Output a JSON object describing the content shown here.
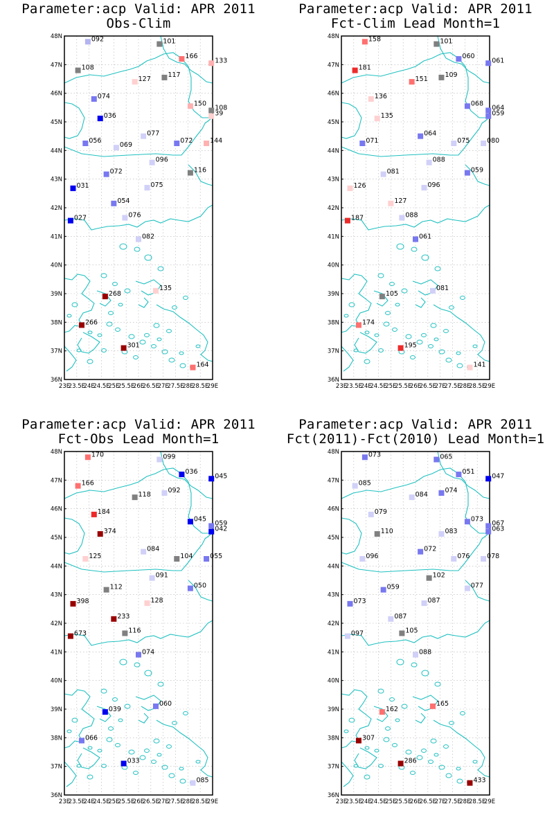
{
  "colors": {
    "coast": "#20c0c0",
    "grid": "#b0b0b0",
    "frame": "#000000",
    "scale": [
      "#0000f0",
      "#3c3cf0",
      "#7878f0",
      "#b4b4f0",
      "#d0d0f8",
      "#808080",
      "#ffd0d0",
      "#ffb0b0",
      "#ff7070",
      "#ee2a2a",
      "#990000"
    ]
  },
  "axes": {
    "lat_labels": [
      "48N",
      "47N",
      "46N",
      "45N",
      "44N",
      "43N",
      "42N",
      "41N",
      "40N",
      "39N",
      "38N",
      "37N",
      "36N"
    ],
    "lon_labels": [
      "23E",
      "23.5E",
      "24E",
      "24.5E",
      "25E",
      "25.5E",
      "26E",
      "26.5E",
      "27E",
      "27.5E",
      "28E",
      "28.5E",
      "29E"
    ],
    "lon_range": [
      23,
      29
    ],
    "lat_range": [
      36,
      48
    ]
  },
  "panels": [
    {
      "title1": "Parameter:acp Valid: APR 2011",
      "title2": "Obs-Clim",
      "stations": [
        {
          "lon": 23.95,
          "lat": 47.8,
          "label": "092",
          "color": "#b4b4f0"
        },
        {
          "lon": 26.85,
          "lat": 47.72,
          "label": "101",
          "color": "#808080"
        },
        {
          "lon": 27.75,
          "lat": 47.2,
          "label": "166",
          "color": "#ff7070"
        },
        {
          "lon": 28.95,
          "lat": 47.05,
          "label": "133",
          "color": "#ffb0b0"
        },
        {
          "lon": 23.55,
          "lat": 46.8,
          "label": "108",
          "color": "#808080"
        },
        {
          "lon": 25.85,
          "lat": 46.4,
          "label": "127",
          "color": "#ffd0d0"
        },
        {
          "lon": 27.05,
          "lat": 46.55,
          "label": "117",
          "color": "#808080"
        },
        {
          "lon": 24.2,
          "lat": 45.8,
          "label": "074",
          "color": "#7878f0"
        },
        {
          "lon": 28.1,
          "lat": 45.55,
          "label": "150",
          "color": "#ffb0b0"
        },
        {
          "lon": 28.95,
          "lat": 45.4,
          "label": "108",
          "color": "#808080"
        },
        {
          "lon": 28.95,
          "lat": 45.2,
          "label": "39",
          "color": "#ffd0d0"
        },
        {
          "lon": 24.45,
          "lat": 45.12,
          "label": "036",
          "color": "#0000f0"
        },
        {
          "lon": 26.2,
          "lat": 44.5,
          "label": "077",
          "color": "#d0d0f8"
        },
        {
          "lon": 23.85,
          "lat": 44.25,
          "label": "056",
          "color": "#7878f0"
        },
        {
          "lon": 25.1,
          "lat": 44.1,
          "label": "069",
          "color": "#d0d0f8"
        },
        {
          "lon": 27.55,
          "lat": 44.25,
          "label": "072",
          "color": "#7878f0"
        },
        {
          "lon": 28.75,
          "lat": 44.25,
          "label": "144",
          "color": "#ffb0b0"
        },
        {
          "lon": 26.55,
          "lat": 43.58,
          "label": "096",
          "color": "#d0d0f8"
        },
        {
          "lon": 24.7,
          "lat": 43.17,
          "label": "072",
          "color": "#7878f0"
        },
        {
          "lon": 28.1,
          "lat": 43.22,
          "label": "116",
          "color": "#808080"
        },
        {
          "lon": 23.35,
          "lat": 42.68,
          "label": "031",
          "color": "#0000f0"
        },
        {
          "lon": 26.35,
          "lat": 42.7,
          "label": "075",
          "color": "#d0d0f8"
        },
        {
          "lon": 25.0,
          "lat": 42.15,
          "label": "054",
          "color": "#7878f0"
        },
        {
          "lon": 25.45,
          "lat": 41.65,
          "label": "076",
          "color": "#d0d0f8"
        },
        {
          "lon": 23.25,
          "lat": 41.55,
          "label": "027",
          "color": "#0000f0"
        },
        {
          "lon": 26.0,
          "lat": 40.9,
          "label": "082",
          "color": "#d0d0f8"
        },
        {
          "lon": 24.65,
          "lat": 38.9,
          "label": "268",
          "color": "#990000"
        },
        {
          "lon": 26.7,
          "lat": 39.1,
          "label": "135",
          "color": "#ffd0d0"
        },
        {
          "lon": 23.7,
          "lat": 37.9,
          "label": "266",
          "color": "#990000"
        },
        {
          "lon": 25.4,
          "lat": 37.1,
          "label": "301",
          "color": "#990000"
        },
        {
          "lon": 28.2,
          "lat": 36.42,
          "label": "164",
          "color": "#ff7070"
        }
      ]
    },
    {
      "title1": "Parameter:acp Valid: APR 2011",
      "title2": "Fct-Clim Lead Month=1",
      "stations": [
        {
          "lon": 23.95,
          "lat": 47.8,
          "label": "158",
          "color": "#ff7070"
        },
        {
          "lon": 26.85,
          "lat": 47.72,
          "label": "101",
          "color": "#808080"
        },
        {
          "lon": 27.75,
          "lat": 47.2,
          "label": "060",
          "color": "#7878f0"
        },
        {
          "lon": 28.95,
          "lat": 47.05,
          "label": "061",
          "color": "#7878f0"
        },
        {
          "lon": 23.55,
          "lat": 46.8,
          "label": "181",
          "color": "#ee2a2a"
        },
        {
          "lon": 25.85,
          "lat": 46.4,
          "label": "151",
          "color": "#ff7070"
        },
        {
          "lon": 27.05,
          "lat": 46.55,
          "label": "109",
          "color": "#808080"
        },
        {
          "lon": 24.2,
          "lat": 45.8,
          "label": "136",
          "color": "#ffd0d0"
        },
        {
          "lon": 28.1,
          "lat": 45.55,
          "label": "068",
          "color": "#7878f0"
        },
        {
          "lon": 28.95,
          "lat": 45.4,
          "label": "064",
          "color": "#7878f0"
        },
        {
          "lon": 28.95,
          "lat": 45.2,
          "label": "059",
          "color": "#7878f0"
        },
        {
          "lon": 24.45,
          "lat": 45.12,
          "label": "135",
          "color": "#ffd0d0"
        },
        {
          "lon": 26.2,
          "lat": 44.5,
          "label": "064",
          "color": "#7878f0"
        },
        {
          "lon": 23.85,
          "lat": 44.25,
          "label": "071",
          "color": "#7878f0"
        },
        {
          "lon": 27.55,
          "lat": 44.25,
          "label": "075",
          "color": "#d0d0f8"
        },
        {
          "lon": 28.75,
          "lat": 44.25,
          "label": "080",
          "color": "#d0d0f8"
        },
        {
          "lon": 26.55,
          "lat": 43.58,
          "label": "088",
          "color": "#d0d0f8"
        },
        {
          "lon": 24.7,
          "lat": 43.17,
          "label": "081",
          "color": "#d0d0f8"
        },
        {
          "lon": 28.1,
          "lat": 43.22,
          "label": "059",
          "color": "#7878f0"
        },
        {
          "lon": 23.35,
          "lat": 42.68,
          "label": "126",
          "color": "#ffd0d0"
        },
        {
          "lon": 26.35,
          "lat": 42.7,
          "label": "096",
          "color": "#d0d0f8"
        },
        {
          "lon": 25.0,
          "lat": 42.15,
          "label": "127",
          "color": "#ffd0d0"
        },
        {
          "lon": 25.45,
          "lat": 41.65,
          "label": "088",
          "color": "#d0d0f8"
        },
        {
          "lon": 23.25,
          "lat": 41.55,
          "label": "187",
          "color": "#ee2a2a"
        },
        {
          "lon": 26.0,
          "lat": 40.9,
          "label": "061",
          "color": "#7878f0"
        },
        {
          "lon": 24.65,
          "lat": 38.9,
          "label": "105",
          "color": "#808080"
        },
        {
          "lon": 26.7,
          "lat": 39.1,
          "label": "081",
          "color": "#d0d0f8"
        },
        {
          "lon": 23.7,
          "lat": 37.9,
          "label": "174",
          "color": "#ff7070"
        },
        {
          "lon": 25.4,
          "lat": 37.1,
          "label": "195",
          "color": "#ee2a2a"
        },
        {
          "lon": 28.2,
          "lat": 36.42,
          "label": "141",
          "color": "#ffd0d0"
        }
      ]
    },
    {
      "title1": "Parameter:acp Valid: APR 2011",
      "title2": "Fct-Obs Lead Month=1",
      "stations": [
        {
          "lon": 23.95,
          "lat": 47.8,
          "label": "170",
          "color": "#ff7070"
        },
        {
          "lon": 26.85,
          "lat": 47.72,
          "label": "099",
          "color": "#d0d0f8"
        },
        {
          "lon": 27.75,
          "lat": 47.2,
          "label": "036",
          "color": "#0000f0"
        },
        {
          "lon": 28.95,
          "lat": 47.05,
          "label": "045",
          "color": "#0000f0"
        },
        {
          "lon": 23.55,
          "lat": 46.8,
          "label": "166",
          "color": "#ff7070"
        },
        {
          "lon": 25.85,
          "lat": 46.4,
          "label": "118",
          "color": "#808080"
        },
        {
          "lon": 27.05,
          "lat": 46.55,
          "label": "092",
          "color": "#d0d0f8"
        },
        {
          "lon": 24.2,
          "lat": 45.8,
          "label": "184",
          "color": "#ee2a2a"
        },
        {
          "lon": 28.1,
          "lat": 45.55,
          "label": "045",
          "color": "#0000f0"
        },
        {
          "lon": 28.95,
          "lat": 45.4,
          "label": "059",
          "color": "#7878f0"
        },
        {
          "lon": 28.95,
          "lat": 45.2,
          "label": "042",
          "color": "#0000f0"
        },
        {
          "lon": 24.45,
          "lat": 45.12,
          "label": "374",
          "color": "#990000"
        },
        {
          "lon": 26.2,
          "lat": 44.5,
          "label": "084",
          "color": "#d0d0f8"
        },
        {
          "lon": 23.85,
          "lat": 44.25,
          "label": "125",
          "color": "#ffd0d0"
        },
        {
          "lon": 27.55,
          "lat": 44.25,
          "label": "104",
          "color": "#808080"
        },
        {
          "lon": 28.75,
          "lat": 44.25,
          "label": "055",
          "color": "#7878f0"
        },
        {
          "lon": 26.55,
          "lat": 43.58,
          "label": "091",
          "color": "#d0d0f8"
        },
        {
          "lon": 24.7,
          "lat": 43.17,
          "label": "112",
          "color": "#808080"
        },
        {
          "lon": 28.1,
          "lat": 43.22,
          "label": "050",
          "color": "#7878f0"
        },
        {
          "lon": 23.35,
          "lat": 42.68,
          "label": "398",
          "color": "#990000"
        },
        {
          "lon": 26.35,
          "lat": 42.7,
          "label": "128",
          "color": "#ffd0d0"
        },
        {
          "lon": 25.0,
          "lat": 42.15,
          "label": "233",
          "color": "#990000"
        },
        {
          "lon": 25.45,
          "lat": 41.65,
          "label": "116",
          "color": "#808080"
        },
        {
          "lon": 23.25,
          "lat": 41.55,
          "label": "673",
          "color": "#990000"
        },
        {
          "lon": 26.0,
          "lat": 40.9,
          "label": "074",
          "color": "#7878f0"
        },
        {
          "lon": 24.65,
          "lat": 38.9,
          "label": "039",
          "color": "#0000f0"
        },
        {
          "lon": 26.7,
          "lat": 39.1,
          "label": "060",
          "color": "#7878f0"
        },
        {
          "lon": 23.7,
          "lat": 37.9,
          "label": "066",
          "color": "#7878f0"
        },
        {
          "lon": 25.4,
          "lat": 37.1,
          "label": "033",
          "color": "#0000f0"
        },
        {
          "lon": 28.2,
          "lat": 36.42,
          "label": "085",
          "color": "#d0d0f8"
        }
      ]
    },
    {
      "title1": "Parameter:acp Valid: APR 2011",
      "title2": "Fct(2011)-Fct(2010) Lead Month=1",
      "stations": [
        {
          "lon": 23.95,
          "lat": 47.8,
          "label": "073",
          "color": "#7878f0"
        },
        {
          "lon": 26.85,
          "lat": 47.72,
          "label": "065",
          "color": "#7878f0"
        },
        {
          "lon": 27.75,
          "lat": 47.2,
          "label": "051",
          "color": "#7878f0"
        },
        {
          "lon": 28.95,
          "lat": 47.05,
          "label": "047",
          "color": "#0000f0"
        },
        {
          "lon": 23.55,
          "lat": 46.8,
          "label": "085",
          "color": "#d0d0f8"
        },
        {
          "lon": 25.85,
          "lat": 46.4,
          "label": "084",
          "color": "#d0d0f8"
        },
        {
          "lon": 27.05,
          "lat": 46.55,
          "label": "074",
          "color": "#7878f0"
        },
        {
          "lon": 24.2,
          "lat": 45.8,
          "label": "079",
          "color": "#d0d0f8"
        },
        {
          "lon": 28.1,
          "lat": 45.55,
          "label": "073",
          "color": "#7878f0"
        },
        {
          "lon": 28.95,
          "lat": 45.4,
          "label": "067",
          "color": "#7878f0"
        },
        {
          "lon": 28.95,
          "lat": 45.2,
          "label": "063",
          "color": "#7878f0"
        },
        {
          "lon": 24.45,
          "lat": 45.12,
          "label": "110",
          "color": "#808080"
        },
        {
          "lon": 26.2,
          "lat": 44.5,
          "label": "072",
          "color": "#7878f0"
        },
        {
          "lon": 23.85,
          "lat": 44.25,
          "label": "096",
          "color": "#d0d0f8"
        },
        {
          "lon": 27.05,
          "lat": 45.12,
          "label": "083",
          "color": "#d0d0f8"
        },
        {
          "lon": 27.55,
          "lat": 44.25,
          "label": "076",
          "color": "#d0d0f8"
        },
        {
          "lon": 28.75,
          "lat": 44.25,
          "label": "078",
          "color": "#d0d0f8"
        },
        {
          "lon": 26.55,
          "lat": 43.58,
          "label": "102",
          "color": "#808080"
        },
        {
          "lon": 24.7,
          "lat": 43.17,
          "label": "059",
          "color": "#7878f0"
        },
        {
          "lon": 28.1,
          "lat": 43.22,
          "label": "077",
          "color": "#d0d0f8"
        },
        {
          "lon": 23.35,
          "lat": 42.68,
          "label": "073",
          "color": "#7878f0"
        },
        {
          "lon": 26.35,
          "lat": 42.7,
          "label": "087",
          "color": "#d0d0f8"
        },
        {
          "lon": 25.0,
          "lat": 42.15,
          "label": "087",
          "color": "#d0d0f8"
        },
        {
          "lon": 25.45,
          "lat": 41.65,
          "label": "105",
          "color": "#808080"
        },
        {
          "lon": 23.25,
          "lat": 41.55,
          "label": "097",
          "color": "#d0d0f8"
        },
        {
          "lon": 26.0,
          "lat": 40.9,
          "label": "088",
          "color": "#d0d0f8"
        },
        {
          "lon": 24.65,
          "lat": 38.9,
          "label": "162",
          "color": "#ff7070"
        },
        {
          "lon": 26.7,
          "lat": 39.1,
          "label": "165",
          "color": "#ff7070"
        },
        {
          "lon": 23.7,
          "lat": 37.9,
          "label": "307",
          "color": "#990000"
        },
        {
          "lon": 25.4,
          "lat": 37.1,
          "label": "286",
          "color": "#990000"
        },
        {
          "lon": 28.2,
          "lat": 36.42,
          "label": "433",
          "color": "#990000"
        }
      ]
    }
  ]
}
